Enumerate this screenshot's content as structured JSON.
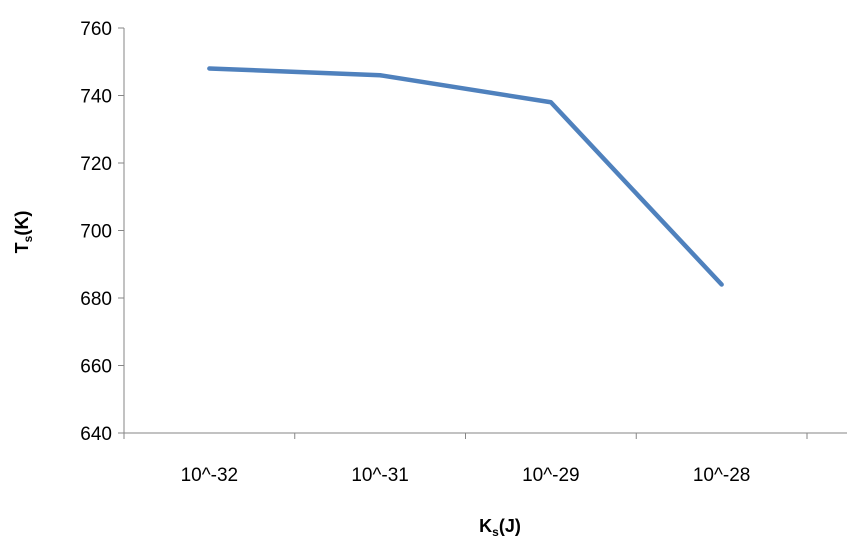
{
  "chart_data": {
    "type": "line",
    "categories": [
      "10^-32",
      "10^-31",
      "10^-29",
      "10^-28"
    ],
    "series": [
      {
        "values": [
          748,
          746,
          738,
          684
        ]
      }
    ],
    "xlabel": {
      "main": "K",
      "sub": "s",
      "suffix": "(J)"
    },
    "ylabel": {
      "main": "T",
      "sub": "s",
      "suffix": "(K)"
    },
    "ylim": [
      640,
      760
    ],
    "yticks": [
      "640",
      "660",
      "680",
      "700",
      "720",
      "740",
      "760"
    ],
    "grid": false,
    "legend": "none",
    "line_color": "#4F81BD"
  }
}
